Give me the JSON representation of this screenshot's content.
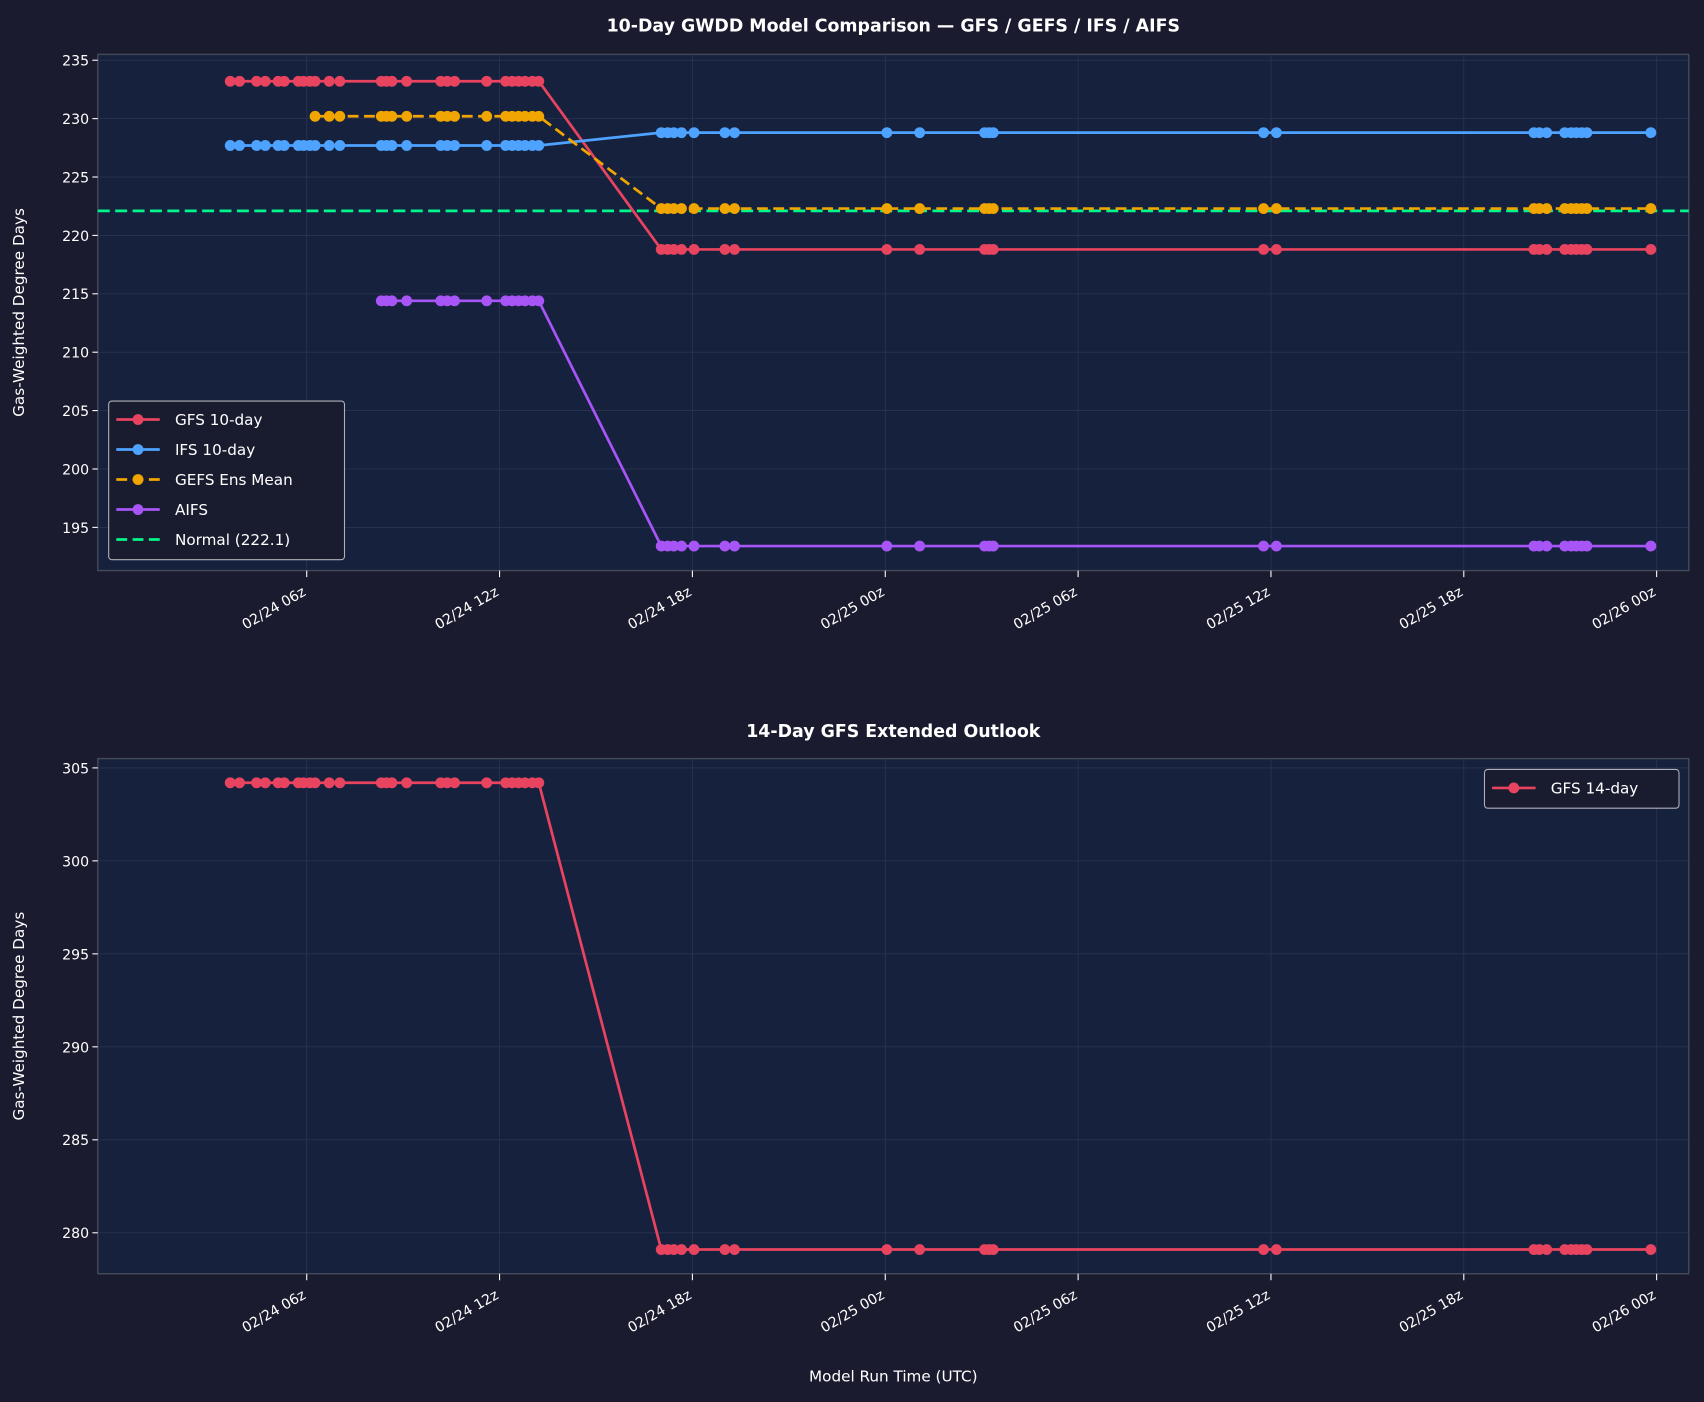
{
  "chart_data": [
    {
      "type": "line",
      "title": "10-Day GWDD Model Comparison — GFS / GEFS / IFS / AIFS",
      "xlabel": "",
      "ylabel": "Gas-Weighted Degree Days",
      "ylim": [
        191.3,
        235.5
      ],
      "yticks": [
        195,
        200,
        205,
        210,
        215,
        220,
        225,
        230,
        235
      ],
      "x_unit": "hours since 02/24 00z",
      "xlim": [
        -0.5,
        49.0
      ],
      "xticks": [
        6,
        12,
        18,
        24,
        30,
        36,
        42,
        48
      ],
      "xtick_labels": [
        "02/24 06z",
        "02/24 12z",
        "02/24 18z",
        "02/25 00z",
        "02/25 06z",
        "02/25 12z",
        "02/25 18z",
        "02/26 00z"
      ],
      "grid": true,
      "legend_position": "lower-left",
      "x": [
        3.62,
        3.91,
        4.44,
        4.71,
        5.11,
        5.3,
        5.74,
        5.9,
        6.1,
        6.26,
        6.7,
        7.03,
        8.32,
        8.48,
        8.65,
        9.11,
        10.17,
        10.37,
        10.6,
        11.6,
        12.19,
        12.39,
        12.59,
        12.79,
        13.02,
        13.22,
        17.03,
        17.23,
        17.42,
        17.66,
        18.05,
        19.01,
        19.31,
        24.05,
        25.07,
        27.09,
        27.23,
        27.36,
        35.77,
        36.17,
        44.18,
        44.35,
        44.58,
        45.14,
        45.34,
        45.5,
        45.67,
        45.83,
        47.82
      ],
      "series": [
        {
          "name": "GFS 10-day",
          "color": "#e8445f",
          "style": "solid",
          "values": [
            233.2,
            233.2,
            233.2,
            233.2,
            233.2,
            233.2,
            233.2,
            233.2,
            233.2,
            233.2,
            233.2,
            233.2,
            233.2,
            233.2,
            233.2,
            233.2,
            233.2,
            233.2,
            233.2,
            233.2,
            233.2,
            233.2,
            233.2,
            233.2,
            233.2,
            233.2,
            218.8,
            218.8,
            218.8,
            218.8,
            218.8,
            218.8,
            218.8,
            218.8,
            218.8,
            218.8,
            218.8,
            218.8,
            218.8,
            218.8,
            218.8,
            218.8,
            218.8,
            218.8,
            218.8,
            218.8,
            218.8,
            218.8,
            218.8
          ]
        },
        {
          "name": "IFS 10-day",
          "color": "#4da3ff",
          "style": "solid",
          "values": [
            227.7,
            227.7,
            227.7,
            227.7,
            227.7,
            227.7,
            227.7,
            227.7,
            227.7,
            227.7,
            227.7,
            227.7,
            227.7,
            227.7,
            227.7,
            227.7,
            227.7,
            227.7,
            227.7,
            227.7,
            227.7,
            227.7,
            227.7,
            227.7,
            227.7,
            227.7,
            228.8,
            228.8,
            228.8,
            228.8,
            228.8,
            228.8,
            228.8,
            228.8,
            228.8,
            228.8,
            228.8,
            228.8,
            228.8,
            228.8,
            228.8,
            228.8,
            228.8,
            228.8,
            228.8,
            228.8,
            228.8,
            228.8,
            228.8
          ]
        },
        {
          "name": "GEFS Ens Mean",
          "color": "#f0a500",
          "style": "dashed",
          "values": [
            null,
            null,
            null,
            null,
            null,
            null,
            null,
            null,
            null,
            230.2,
            230.2,
            230.2,
            230.2,
            230.2,
            230.2,
            230.2,
            230.2,
            230.2,
            230.2,
            230.2,
            230.2,
            230.2,
            230.2,
            230.2,
            230.2,
            230.2,
            222.3,
            222.3,
            222.3,
            222.3,
            222.3,
            222.3,
            222.3,
            222.3,
            222.3,
            222.3,
            222.3,
            222.3,
            222.3,
            222.3,
            222.3,
            222.3,
            222.3,
            222.3,
            222.3,
            222.3,
            222.3,
            222.3,
            222.3
          ]
        },
        {
          "name": "AIFS",
          "color": "#a855f7",
          "style": "solid",
          "values": [
            null,
            null,
            null,
            null,
            null,
            null,
            null,
            null,
            null,
            null,
            null,
            null,
            214.4,
            214.4,
            214.4,
            214.4,
            214.4,
            214.4,
            214.4,
            214.4,
            214.4,
            214.4,
            214.4,
            214.4,
            214.4,
            214.4,
            193.4,
            193.4,
            193.4,
            193.4,
            193.4,
            193.4,
            193.4,
            193.4,
            193.4,
            193.4,
            193.4,
            193.4,
            193.4,
            193.4,
            193.4,
            193.4,
            193.4,
            193.4,
            193.4,
            193.4,
            193.4,
            193.4,
            193.4
          ]
        }
      ],
      "reference_line": {
        "name": "Normal (222.1)",
        "value": 222.1,
        "color": "#00f58a",
        "style": "dashed"
      }
    },
    {
      "type": "line",
      "title": "14-Day GFS Extended Outlook",
      "xlabel": "Model Run Time (UTC)",
      "ylabel": "Gas-Weighted Degree Days",
      "ylim": [
        277.8,
        305.5
      ],
      "yticks": [
        280,
        285,
        290,
        295,
        300,
        305
      ],
      "x_unit": "hours since 02/24 00z",
      "xlim": [
        -0.5,
        49.0
      ],
      "xticks": [
        6,
        12,
        18,
        24,
        30,
        36,
        42,
        48
      ],
      "xtick_labels": [
        "02/24 06z",
        "02/24 12z",
        "02/24 18z",
        "02/25 00z",
        "02/25 06z",
        "02/25 12z",
        "02/25 18z",
        "02/26 00z"
      ],
      "grid": true,
      "legend_position": "top-right",
      "x": [
        3.62,
        3.91,
        4.44,
        4.71,
        5.11,
        5.3,
        5.74,
        5.9,
        6.1,
        6.26,
        6.7,
        7.03,
        8.32,
        8.48,
        8.65,
        9.11,
        10.17,
        10.37,
        10.6,
        11.6,
        12.19,
        12.39,
        12.59,
        12.79,
        13.02,
        13.22,
        17.03,
        17.23,
        17.42,
        17.66,
        18.05,
        19.01,
        19.31,
        24.05,
        25.07,
        27.09,
        27.23,
        27.36,
        35.77,
        36.17,
        44.18,
        44.35,
        44.58,
        45.14,
        45.34,
        45.5,
        45.67,
        45.83,
        47.82
      ],
      "series": [
        {
          "name": "GFS 14-day",
          "color": "#e8445f",
          "style": "solid",
          "values": [
            304.2,
            304.2,
            304.2,
            304.2,
            304.2,
            304.2,
            304.2,
            304.2,
            304.2,
            304.2,
            304.2,
            304.2,
            304.2,
            304.2,
            304.2,
            304.2,
            304.2,
            304.2,
            304.2,
            304.2,
            304.2,
            304.2,
            304.2,
            304.2,
            304.2,
            304.2,
            279.1,
            279.1,
            279.1,
            279.1,
            279.1,
            279.1,
            279.1,
            279.1,
            279.1,
            279.1,
            279.1,
            279.1,
            279.1,
            279.1,
            279.1,
            279.1,
            279.1,
            279.1,
            279.1,
            279.1,
            279.1,
            279.1,
            279.1
          ]
        }
      ]
    }
  ]
}
